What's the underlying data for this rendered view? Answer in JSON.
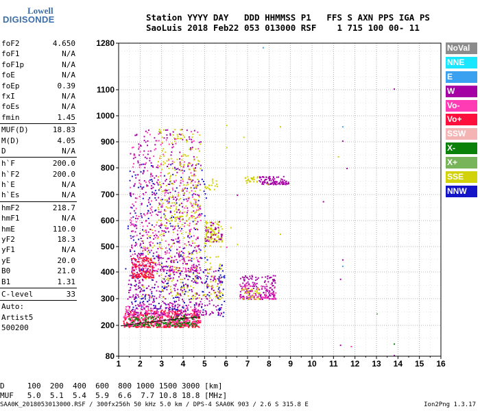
{
  "logo": {
    "line1": "Lowell",
    "line2": "DIGISONDE"
  },
  "header": {
    "line1": "Station YYYY DAY   DDD HHMMSS P1   FFS S AXN PPS IGA PS",
    "line2": "SaoLuis 2018 Feb22 053 013000 RSF    1 715 100 00- 11"
  },
  "params": {
    "group1": [
      {
        "k": "foF2",
        "v": "4.650"
      },
      {
        "k": "foF1",
        "v": "N/A"
      },
      {
        "k": "foF1p",
        "v": "N/A"
      },
      {
        "k": "foE",
        "v": "N/A"
      },
      {
        "k": "foEp",
        "v": "0.39"
      },
      {
        "k": "fxI",
        "v": "N/A"
      },
      {
        "k": "foEs",
        "v": "N/A"
      },
      {
        "k": "fmin",
        "v": "1.45"
      }
    ],
    "group2": [
      {
        "k": "MUF(D)",
        "v": "18.83"
      },
      {
        "k": "M(D)",
        "v": "4.05"
      },
      {
        "k": "D",
        "v": "N/A"
      }
    ],
    "group3": [
      {
        "k": "h`F",
        "v": "200.0"
      },
      {
        "k": "h`F2",
        "v": "200.0"
      },
      {
        "k": "h`E",
        "v": "N/A"
      },
      {
        "k": "h`Es",
        "v": "N/A"
      }
    ],
    "group4": [
      {
        "k": "hmF2",
        "v": "218.7"
      },
      {
        "k": "hmF1",
        "v": "N/A"
      },
      {
        "k": "hmE",
        "v": "110.0"
      },
      {
        "k": "yF2",
        "v": "18.3"
      },
      {
        "k": "yF1",
        "v": "N/A"
      },
      {
        "k": "yE",
        "v": "20.0"
      },
      {
        "k": "B0",
        "v": "21.0"
      },
      {
        "k": "B1",
        "v": "1.31"
      }
    ],
    "group5": [
      {
        "k": "C-level",
        "v": "33"
      }
    ],
    "notes": [
      "Auto:",
      "Artist5",
      "500200"
    ]
  },
  "legend": [
    {
      "label": "NoVal",
      "color": "#8c8c8c"
    },
    {
      "label": "NNE",
      "color": "#19e6ff"
    },
    {
      "label": "E",
      "color": "#3aa0f0"
    },
    {
      "label": "W",
      "color": "#a400a4"
    },
    {
      "label": "Vo-",
      "color": "#ff3cb4"
    },
    {
      "label": "Vo+",
      "color": "#ff0f3c"
    },
    {
      "label": "SSW",
      "color": "#f5b4b4"
    },
    {
      "label": "X-",
      "color": "#0a820a"
    },
    {
      "label": "X+",
      "color": "#78b45a"
    },
    {
      "label": "SSE",
      "color": "#d2d20a"
    },
    {
      "label": "NNW",
      "color": "#1414c8"
    }
  ],
  "footer": {
    "line1": "D     100  200  400  600  800 1000 1500 3000 [km]",
    "line2": "MUF   5.0  5.1  5.4  5.9  6.6  7.7 10.8 18.8 [MHz]",
    "bottom_left": "SAA0K_2018053013000.RSF / 300fx256h 50 kHz 5.0 km / DPS-4 SAA0K 903 / 2.6 S 315.8 E",
    "bottom_right": "Ion2Png 1.3.17"
  },
  "chart_data": {
    "type": "scatter",
    "x_ticks": [
      "1",
      "2",
      "3",
      "4",
      "5",
      "6",
      "7",
      "8",
      "9",
      "10",
      "11",
      "12",
      "13",
      "14",
      "15",
      "16"
    ],
    "y_ticks": [
      "80",
      "200",
      "300",
      "400",
      "500",
      "600",
      "700",
      "800",
      "900",
      "1000",
      "1100",
      "1280"
    ],
    "xlim": [
      1,
      16
    ],
    "ylim": [
      80,
      1280
    ],
    "y_scale": "nonlinear",
    "grid": true,
    "legend_position": "right",
    "clusters": [
      {
        "color": "#ff0f3c",
        "xr": [
          1.2,
          4.8
        ],
        "yr": [
          195,
          260
        ],
        "n": 420
      },
      {
        "color": "#ff3cb4",
        "xr": [
          1.2,
          4.8
        ],
        "yr": [
          200,
          280
        ],
        "n": 260
      },
      {
        "color": "#0a820a",
        "xr": [
          1.3,
          4.6
        ],
        "yr": [
          200,
          240
        ],
        "n": 140
      },
      {
        "color": "#a400a4",
        "xr": [
          1.4,
          5.8
        ],
        "yr": [
          240,
          420
        ],
        "n": 380
      },
      {
        "color": "#d2d20a",
        "xr": [
          2.0,
          5.8
        ],
        "yr": [
          300,
          600
        ],
        "n": 220
      },
      {
        "color": "#1414c8",
        "xr": [
          1.4,
          5.2
        ],
        "yr": [
          260,
          820
        ],
        "n": 260
      },
      {
        "color": "#a400a4",
        "xr": [
          1.5,
          4.8
        ],
        "yr": [
          400,
          950
        ],
        "n": 420
      },
      {
        "color": "#ff3cb4",
        "xr": [
          1.5,
          4.8
        ],
        "yr": [
          400,
          950
        ],
        "n": 260
      },
      {
        "color": "#d2d20a",
        "xr": [
          2.8,
          4.8
        ],
        "yr": [
          600,
          950
        ],
        "n": 200
      },
      {
        "color": "#ff0f3c",
        "xr": [
          1.6,
          2.6
        ],
        "yr": [
          380,
          460
        ],
        "n": 140
      },
      {
        "color": "#d2d20a",
        "xr": [
          5.0,
          5.8
        ],
        "yr": [
          520,
          600
        ],
        "n": 80
      },
      {
        "color": "#a400a4",
        "xr": [
          5.0,
          5.8
        ],
        "yr": [
          520,
          600
        ],
        "n": 40
      },
      {
        "color": "#d2d20a",
        "xr": [
          5.0,
          5.6
        ],
        "yr": [
          720,
          760
        ],
        "n": 20
      },
      {
        "color": "#a400a4",
        "xr": [
          6.6,
          8.3
        ],
        "yr": [
          300,
          390
        ],
        "n": 160
      },
      {
        "color": "#ff3cb4",
        "xr": [
          6.6,
          8.3
        ],
        "yr": [
          300,
          360
        ],
        "n": 60
      },
      {
        "color": "#d2d20a",
        "xr": [
          6.6,
          7.6
        ],
        "yr": [
          300,
          340
        ],
        "n": 30
      },
      {
        "color": "#a400a4",
        "xr": [
          7.5,
          8.9
        ],
        "yr": [
          740,
          770
        ],
        "n": 90
      },
      {
        "color": "#d2d20a",
        "xr": [
          6.8,
          7.5
        ],
        "yr": [
          745,
          770
        ],
        "n": 25
      },
      {
        "color": "#1414c8",
        "xr": [
          5.6,
          5.9
        ],
        "yr": [
          230,
          470
        ],
        "n": 30
      }
    ],
    "sparse_points": [
      {
        "x": 7.7,
        "y": 1265,
        "color": "#3aa0f0"
      },
      {
        "x": 13.8,
        "y": 1105,
        "color": "#a400a4"
      },
      {
        "x": 11.4,
        "y": 960,
        "color": "#3aa0f0"
      },
      {
        "x": 11.4,
        "y": 905,
        "color": "#a400a4"
      },
      {
        "x": 11.2,
        "y": 845,
        "color": "#d2d20a"
      },
      {
        "x": 11.6,
        "y": 800,
        "color": "#a400a4"
      },
      {
        "x": 10.5,
        "y": 675,
        "color": "#a400a4"
      },
      {
        "x": 11.4,
        "y": 450,
        "color": "#a400a4"
      },
      {
        "x": 11.4,
        "y": 425,
        "color": "#3aa0f0"
      },
      {
        "x": 11.3,
        "y": 375,
        "color": "#a400a4"
      },
      {
        "x": 11.3,
        "y": 125,
        "color": "#a400a4"
      },
      {
        "x": 11.8,
        "y": 120,
        "color": "#ff3cb4"
      },
      {
        "x": 13.8,
        "y": 130,
        "color": "#0a820a"
      },
      {
        "x": 13.8,
        "y": 85,
        "color": "#a400a4"
      },
      {
        "x": 13.0,
        "y": 245,
        "color": "#78b45a"
      },
      {
        "x": 8.5,
        "y": 960,
        "color": "#d2d20a"
      },
      {
        "x": 6.0,
        "y": 965,
        "color": "#d2d20a"
      },
      {
        "x": 6.8,
        "y": 920,
        "color": "#d2d20a"
      },
      {
        "x": 6.0,
        "y": 880,
        "color": "#d2d20a"
      },
      {
        "x": 7.9,
        "y": 740,
        "color": "#d2d20a"
      },
      {
        "x": 6.2,
        "y": 575,
        "color": "#d2d20a"
      },
      {
        "x": 6.5,
        "y": 510,
        "color": "#d2d20a"
      },
      {
        "x": 6.0,
        "y": 500,
        "color": "#ff3cb4"
      },
      {
        "x": 8.5,
        "y": 550,
        "color": "#d2d20a"
      },
      {
        "x": 6.5,
        "y": 700,
        "color": "#a400a4"
      },
      {
        "x": 1.5,
        "y": 790,
        "color": "#1414c8"
      },
      {
        "x": 1.3,
        "y": 415,
        "color": "#1414c8"
      }
    ],
    "trace_line": {
      "color": "#000000",
      "points": [
        [
          1.1,
          198
        ],
        [
          2.2,
          210
        ],
        [
          3.5,
          222
        ],
        [
          4.8,
          232
        ]
      ]
    }
  }
}
